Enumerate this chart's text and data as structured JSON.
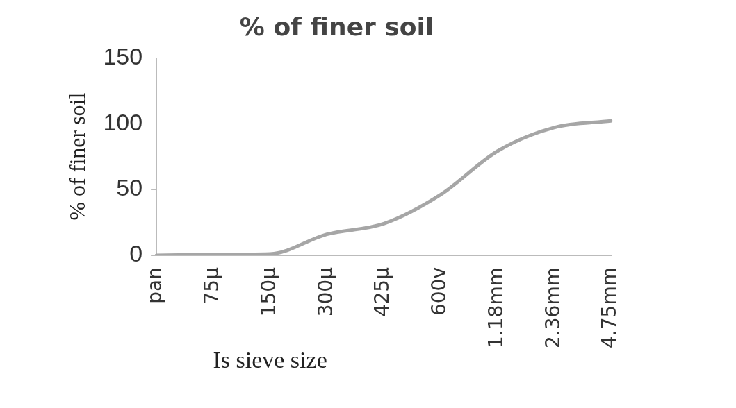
{
  "chart_data": {
    "type": "line",
    "title": "% of finer soil",
    "xlabel": "Is sieve size",
    "ylabel": "% of finer soil",
    "categories": [
      "pan",
      "75µ",
      "150µ",
      "300µ",
      "425µ",
      "600v",
      "1.18mm",
      "2.36mm",
      "4.75mm"
    ],
    "series": [
      {
        "color": "#a6a6a6",
        "values": [
          0,
          0.5,
          1,
          16,
          24,
          46,
          79,
          97,
          102
        ]
      }
    ],
    "ylim": [
      0,
      150
    ],
    "yticks": [
      0,
      50,
      100,
      150
    ],
    "grid": false,
    "legend": false,
    "marker": "none",
    "line_style": "solid"
  }
}
